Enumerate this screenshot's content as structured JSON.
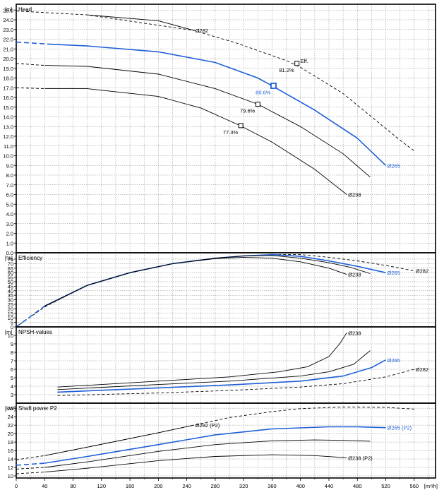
{
  "chart_data": {
    "type": "line",
    "colors": {
      "highlight": "#1f5fd6",
      "line": "#000000",
      "grid": "#8a8a8a"
    },
    "x_axis": {
      "unit": "[m³/h]",
      "ticks": [
        "0",
        "40",
        "80",
        "120",
        "160",
        "200",
        "240",
        "280",
        "320",
        "360",
        "400",
        "440",
        "480",
        "520",
        "560"
      ],
      "range": [
        0,
        590
      ]
    },
    "panels": [
      {
        "id": "head",
        "title": "Head",
        "unit": "[m]",
        "ylim": [
          0,
          25.6
        ],
        "ticks": [
          "0.0",
          "1.0",
          "2.0",
          "3.0",
          "4.0",
          "5.0",
          "6.0",
          "7.0",
          "8.0",
          "9.0",
          "10.0",
          "11.0",
          "12.0",
          "13.0",
          "14.0",
          "15.0",
          "16.0",
          "17.0",
          "18.0",
          "19.0",
          "20.0",
          "21.0",
          "22.0",
          "23.0",
          "24.0",
          "25.0"
        ],
        "series": [
          {
            "name": "Ø282",
            "highlight": false,
            "dashed": [
              [
                0,
                24.9
              ],
              [
                100,
                24.5
              ],
              [
                250,
                22.9
              ],
              [
                310,
                21.6
              ],
              [
                380,
                19.8
              ],
              [
                400,
                19.1
              ],
              [
                460,
                16.4
              ],
              [
                500,
                14.0
              ],
              [
                540,
                11.6
              ],
              [
                560,
                10.5
              ]
            ],
            "solid": [
              [
                100,
                24.5
              ],
              [
                200,
                23.9
              ],
              [
                250,
                22.9
              ]
            ]
          },
          {
            "name": "Ø265",
            "highlight": true,
            "dashed": [
              [
                0,
                21.7
              ],
              [
                45,
                21.5
              ]
            ],
            "solid": [
              [
                45,
                21.5
              ],
              [
                100,
                21.3
              ],
              [
                200,
                20.7
              ],
              [
                280,
                19.6
              ],
              [
                340,
                18.0
              ],
              [
                360,
                17.2
              ],
              [
                420,
                14.7
              ],
              [
                480,
                11.8
              ],
              [
                520,
                9.0
              ]
            ]
          },
          {
            "name": "",
            "highlight": false,
            "dashed": [
              [
                0,
                19.5
              ],
              [
                40,
                19.3
              ]
            ],
            "solid": [
              [
                40,
                19.3
              ],
              [
                100,
                19.2
              ],
              [
                200,
                18.4
              ],
              [
                280,
                16.9
              ],
              [
                340,
                15.3
              ],
              [
                400,
                13.0
              ],
              [
                460,
                10.2
              ],
              [
                498,
                7.8
              ]
            ]
          },
          {
            "name": "Ø238",
            "highlight": false,
            "dashed": [
              [
                0,
                17.0
              ],
              [
                40,
                16.9
              ]
            ],
            "solid": [
              [
                40,
                16.9
              ],
              [
                100,
                16.9
              ],
              [
                200,
                16.1
              ],
              [
                260,
                14.9
              ],
              [
                315,
                13.1
              ],
              [
                360,
                11.4
              ],
              [
                420,
                8.6
              ],
              [
                465,
                6.0
              ]
            ]
          }
        ],
        "efficiency_markers": [
          {
            "label": "81.2%",
            "x": 395,
            "y": 19.5,
            "highlight": false
          },
          {
            "label": "80.6%",
            "x": 362,
            "y": 17.2,
            "highlight": true
          },
          {
            "label": "79.6%",
            "x": 340,
            "y": 15.3,
            "highlight": false
          },
          {
            "label": "77.3%",
            "x": 316,
            "y": 13.1,
            "highlight": false
          }
        ],
        "eff_label": "Eff."
      },
      {
        "id": "efficiency",
        "title": "Efficiency",
        "unit": "[%]",
        "ylim": [
          0,
          82
        ],
        "ticks": [
          "0",
          "5",
          "10",
          "15",
          "20",
          "25",
          "30",
          "35",
          "40",
          "45",
          "50",
          "55",
          "60",
          "65",
          "70",
          "75"
        ],
        "series": [
          {
            "name": "Ø282",
            "highlight": false,
            "dashed": [
              [
                0,
                0
              ],
              [
                40,
                22
              ],
              [
                100,
                46
              ],
              [
                160,
                60
              ],
              [
                220,
                70
              ],
              [
                280,
                76
              ],
              [
                320,
                78.5
              ],
              [
                360,
                80
              ],
              [
                400,
                80
              ],
              [
                440,
                77
              ],
              [
                480,
                73
              ],
              [
                520,
                68
              ],
              [
                560,
                62
              ]
            ],
            "solid": []
          },
          {
            "name": "Ø265",
            "highlight": true,
            "dashed": [
              [
                0,
                0
              ],
              [
                40,
                23
              ]
            ],
            "solid": [
              [
                40,
                23
              ],
              [
                100,
                46
              ],
              [
                160,
                60
              ],
              [
                220,
                70
              ],
              [
                280,
                76
              ],
              [
                320,
                78.5
              ],
              [
                360,
                80
              ],
              [
                400,
                78
              ],
              [
                440,
                73
              ],
              [
                480,
                67
              ],
              [
                520,
                60
              ]
            ]
          },
          {
            "name": "",
            "highlight": false,
            "dashed": [],
            "solid": [
              [
                40,
                23
              ],
              [
                100,
                46
              ],
              [
                160,
                60
              ],
              [
                220,
                70
              ],
              [
                280,
                76
              ],
              [
                320,
                78.5
              ],
              [
                360,
                79
              ],
              [
                400,
                76
              ],
              [
                440,
                71
              ],
              [
                470,
                66
              ],
              [
                498,
                59
              ]
            ]
          },
          {
            "name": "Ø238",
            "highlight": false,
            "dashed": [],
            "solid": [
              [
                40,
                23
              ],
              [
                100,
                46
              ],
              [
                160,
                60
              ],
              [
                220,
                70
              ],
              [
                280,
                75.5
              ],
              [
                320,
                77
              ],
              [
                360,
                76
              ],
              [
                400,
                72
              ],
              [
                440,
                65
              ],
              [
                465,
                58
              ]
            ]
          }
        ]
      },
      {
        "id": "npsh",
        "title": "NPSH-values",
        "unit": "[m]",
        "ylim": [
          2,
          11
        ],
        "ticks": [
          "3",
          "4",
          "5",
          "6",
          "7",
          "8",
          "9",
          "10"
        ],
        "series": [
          {
            "name": "Ø282",
            "highlight": false,
            "dashed": [
              [
                58,
                2.9
              ],
              [
                200,
                3.2
              ],
              [
                300,
                3.5
              ],
              [
                400,
                3.9
              ],
              [
                460,
                4.3
              ],
              [
                520,
                5.1
              ],
              [
                560,
                6.0
              ]
            ],
            "solid": []
          },
          {
            "name": "Ø265",
            "highlight": true,
            "dashed": [],
            "solid": [
              [
                58,
                3.3
              ],
              [
                200,
                3.8
              ],
              [
                300,
                4.15
              ],
              [
                400,
                4.6
              ],
              [
                460,
                5.2
              ],
              [
                500,
                6.2
              ],
              [
                520,
                7.1
              ]
            ]
          },
          {
            "name": "",
            "highlight": false,
            "dashed": [],
            "solid": [
              [
                58,
                3.6
              ],
              [
                200,
                4.2
              ],
              [
                300,
                4.6
              ],
              [
                400,
                5.2
              ],
              [
                440,
                5.7
              ],
              [
                475,
                6.6
              ],
              [
                498,
                8.2
              ]
            ]
          },
          {
            "name": "Ø238",
            "highlight": false,
            "dashed": [],
            "solid": [
              [
                58,
                3.9
              ],
              [
                200,
                4.6
              ],
              [
                300,
                5.1
              ],
              [
                370,
                5.7
              ],
              [
                410,
                6.3
              ],
              [
                440,
                7.5
              ],
              [
                455,
                9.0
              ],
              [
                465,
                10.3
              ]
            ]
          }
        ]
      },
      {
        "id": "power",
        "title": "Shaft power P2",
        "unit": "[kW]",
        "ylim": [
          9.5,
          27.2
        ],
        "ticks": [
          "10",
          "12",
          "14",
          "16",
          "18",
          "20",
          "22",
          "24",
          "26"
        ],
        "series": [
          {
            "name": "Ø282 (P2)",
            "highlight": false,
            "dashed": [
              [
                0,
                13.8
              ],
              [
                40,
                14.8
              ],
              [
                100,
                16.8
              ],
              [
                200,
                20.2
              ],
              [
                250,
                22.0
              ],
              [
                300,
                23.8
              ],
              [
                360,
                25.2
              ],
              [
                400,
                25.9
              ],
              [
                460,
                26.3
              ],
              [
                520,
                26.2
              ],
              [
                560,
                25.8
              ]
            ],
            "solid": [
              [
                40,
                14.8
              ],
              [
                100,
                16.8
              ],
              [
                200,
                20.2
              ],
              [
                250,
                22.0
              ]
            ]
          },
          {
            "name": "Ø265 (P2)",
            "highlight": true,
            "dashed": [
              [
                0,
                12.5
              ],
              [
                40,
                13.0
              ]
            ],
            "solid": [
              [
                40,
                13.0
              ],
              [
                100,
                14.6
              ],
              [
                200,
                17.4
              ],
              [
                280,
                19.7
              ],
              [
                360,
                21.1
              ],
              [
                440,
                21.6
              ],
              [
                480,
                21.6
              ],
              [
                520,
                21.4
              ]
            ]
          },
          {
            "name": "",
            "highlight": false,
            "dashed": [
              [
                0,
                11.6
              ],
              [
                40,
                12.0
              ]
            ],
            "solid": [
              [
                40,
                12.0
              ],
              [
                100,
                13.3
              ],
              [
                200,
                15.8
              ],
              [
                280,
                17.4
              ],
              [
                360,
                18.3
              ],
              [
                420,
                18.5
              ],
              [
                460,
                18.4
              ],
              [
                498,
                18.2
              ]
            ]
          },
          {
            "name": "Ø238 (P2)",
            "highlight": false,
            "dashed": [
              [
                0,
                10.5
              ],
              [
                40,
                10.9
              ]
            ],
            "solid": [
              [
                40,
                10.9
              ],
              [
                100,
                11.8
              ],
              [
                200,
                13.6
              ],
              [
                280,
                14.6
              ],
              [
                360,
                15.0
              ],
              [
                420,
                14.8
              ],
              [
                465,
                14.3
              ]
            ]
          }
        ]
      }
    ]
  }
}
